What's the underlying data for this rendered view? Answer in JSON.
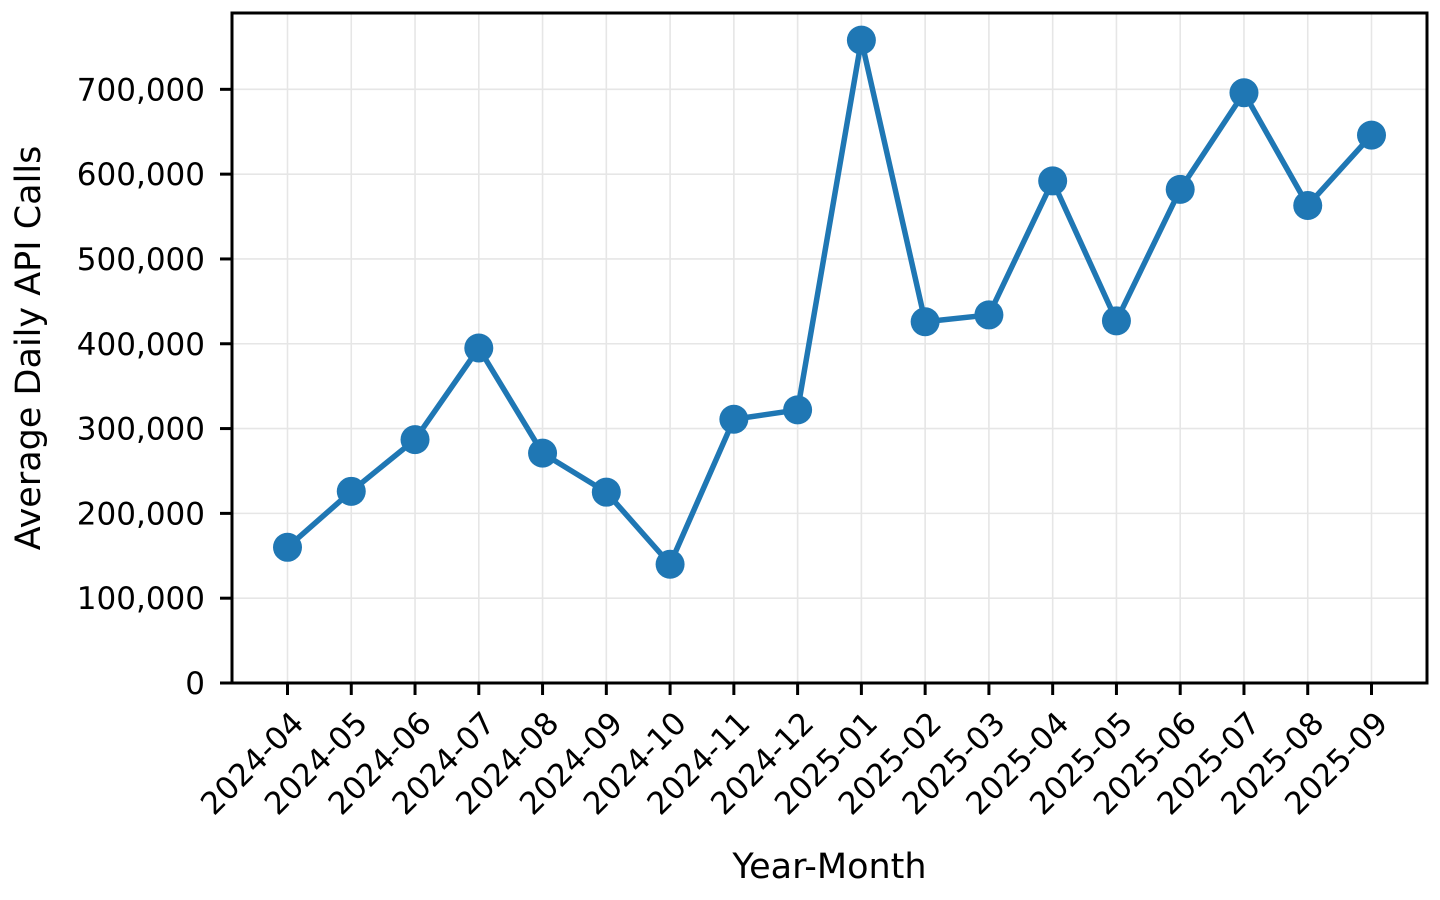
{
  "figure": {
    "background_color": "#ffffff",
    "text_color": "#000000",
    "grid_color": "#e6e6e6",
    "spine_color": "#000000"
  },
  "chart_data": {
    "type": "line",
    "title": "",
    "xlabel": "Year-Month",
    "ylabel": "Average Daily API Calls",
    "categories": [
      "2024-04",
      "2024-05",
      "2024-06",
      "2024-07",
      "2024-08",
      "2024-09",
      "2024-10",
      "2024-11",
      "2024-12",
      "2025-01",
      "2025-02",
      "2025-03",
      "2025-04",
      "2025-05",
      "2025-06",
      "2025-07",
      "2025-08",
      "2025-09"
    ],
    "series": [
      {
        "name": "Average Daily API Calls",
        "values": [
          160000,
          226000,
          287000,
          395000,
          271000,
          225000,
          140000,
          311000,
          322000,
          758000,
          426000,
          434000,
          592000,
          427000,
          582000,
          696000,
          563000,
          646000
        ]
      }
    ],
    "ylim": [
      0,
      790000
    ],
    "yticks": [
      0,
      100000,
      200000,
      300000,
      400000,
      500000,
      600000,
      700000
    ],
    "ytick_labels": [
      "0",
      "100,000",
      "200,000",
      "300,000",
      "400,000",
      "500,000",
      "600,000",
      "700,000"
    ],
    "x_tick_rotation_deg": 45,
    "grid": true,
    "legend_position": "none",
    "line_color": "#1f77b4",
    "marker": "circle",
    "marker_radius": 14.5,
    "line_width": 5.5
  }
}
